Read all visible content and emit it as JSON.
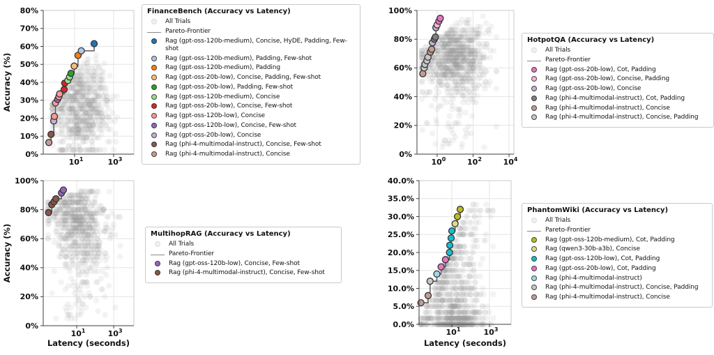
{
  "page": {
    "background": "#ffffff",
    "accuracy_axis_label": "Accuracy (%)",
    "latency_axis_label": "Latency (seconds)"
  },
  "chart_data": [
    {
      "id": "financebench",
      "type": "scatter",
      "title": "FinanceBench (Accuracy vs Latency)",
      "xlabel": null,
      "ylabel": "Accuracy (%)",
      "x_scale": "log",
      "x_tick_exponents": [
        1,
        3
      ],
      "x_log_range": [
        -0.61,
        4.04
      ],
      "y_range": [
        0,
        80
      ],
      "y_tick_step": 10,
      "y_tick_decimals": 0,
      "legend": {
        "title": "FinanceBench (Accuracy vs Latency)",
        "items": [
          {
            "label": "All Trials",
            "marker": "dot",
            "color": "#f0f0f0",
            "light": true
          },
          {
            "label": "Pareto-Frontier",
            "marker": "line",
            "color": "#888888"
          },
          {
            "label": "Rag (gpt-oss-120b-medium), Concise, HyDE, Padding, Few-shot",
            "marker": "dot",
            "color": "#1f77b4"
          },
          {
            "label": "Rag (gpt-oss-120b-medium), Padding, Few-shot",
            "marker": "dot",
            "color": "#aec7e8"
          },
          {
            "label": "Rag (gpt-oss-120b-medium), Padding",
            "marker": "dot",
            "color": "#ff7f0e"
          },
          {
            "label": "Rag (gpt-oss-20b-low), Concise, Padding, Few-shot",
            "marker": "dot",
            "color": "#ffbb78"
          },
          {
            "label": "Rag (gpt-oss-20b-low), Padding, Few-shot",
            "marker": "dot",
            "color": "#2ca02c"
          },
          {
            "label": "Rag (gpt-oss-120b-medium), Concise",
            "marker": "dot",
            "color": "#98df8a"
          },
          {
            "label": "Rag (gpt-oss-20b-low), Concise, Few-shot",
            "marker": "dot",
            "color": "#d62728"
          },
          {
            "label": "Rag (gpt-oss-120b-low), Concise",
            "marker": "dot",
            "color": "#ff9896"
          },
          {
            "label": "Rag (gpt-oss-120b-low), Concise, Few-shot",
            "marker": "dot",
            "color": "#9467bd"
          },
          {
            "label": "Rag (gpt-oss-20b-low), Concise",
            "marker": "dot",
            "color": "#c5b0d5"
          },
          {
            "label": "Rag (phi-4-multimodal-instruct), Concise, Few-shot",
            "marker": "dot",
            "color": "#8c564b"
          },
          {
            "label": "Rag (phi-4-multimodal-instruct), Concise",
            "marker": "dot",
            "color": "#c49c94"
          }
        ]
      },
      "pareto_frontier": {
        "line_color": "#5a5a5a",
        "points": [
          {
            "latency_s": 0.48,
            "accuracy_pct": 6.5,
            "series": "Rag (phi-4-multimodal-instruct), Concise"
          },
          {
            "latency_s": 0.62,
            "accuracy_pct": 11,
            "series": "Rag (phi-4-multimodal-instruct), Concise, Few-shot"
          },
          {
            "latency_s": 0.85,
            "accuracy_pct": 18.5,
            "series": "Rag (gpt-oss-20b-low), Concise"
          },
          {
            "latency_s": 0.92,
            "accuracy_pct": 21,
            "series": "Rag (gpt-oss-120b-low), Concise"
          },
          {
            "latency_s": 1.05,
            "accuracy_pct": 28.5,
            "series": "Rag (gpt-oss-120b-low), Concise"
          },
          {
            "latency_s": 1.35,
            "accuracy_pct": 30.5,
            "series": "Rag (gpt-oss-120b-low), Concise, Few-shot"
          },
          {
            "latency_s": 1.55,
            "accuracy_pct": 32,
            "series": "Rag (gpt-oss-120b-low), Concise"
          },
          {
            "latency_s": 1.7,
            "accuracy_pct": 33.5,
            "series": "Rag (gpt-oss-120b-low), Concise"
          },
          {
            "latency_s": 2.9,
            "accuracy_pct": 36,
            "series": "Rag (gpt-oss-20b-low), Concise, Few-shot"
          },
          {
            "latency_s": 3.1,
            "accuracy_pct": 39.5,
            "series": "Rag (gpt-oss-20b-low), Concise, Few-shot"
          },
          {
            "latency_s": 4.5,
            "accuracy_pct": 41,
            "series": "Rag (gpt-oss-120b-medium), Concise"
          },
          {
            "latency_s": 5.5,
            "accuracy_pct": 43,
            "series": "Rag (gpt-oss-120b-medium), Concise"
          },
          {
            "latency_s": 6.5,
            "accuracy_pct": 45,
            "series": "Rag (gpt-oss-20b-low), Padding, Few-shot"
          },
          {
            "latency_s": 9.5,
            "accuracy_pct": 49,
            "series": "Rag (gpt-oss-20b-low), Concise, Padding, Few-shot"
          },
          {
            "latency_s": 15,
            "accuracy_pct": 55,
            "series": "Rag (gpt-oss-120b-medium), Padding"
          },
          {
            "latency_s": 22,
            "accuracy_pct": 57.5,
            "series": "Rag (gpt-oss-120b-medium), Padding, Few-shot"
          },
          {
            "latency_s": 100,
            "accuracy_pct": 61.5,
            "series": "Rag (gpt-oss-120b-medium), Concise, HyDE, Padding, Few-shot"
          }
        ]
      },
      "all_trials_cloud": {
        "count": 700,
        "seed": 11,
        "dot_color": "#9c9c9c",
        "dot_opacity": 0.12,
        "x_log": {
          "mean": 1.35,
          "sd": 0.72,
          "min": -0.15,
          "max": 3.3
        },
        "y": {
          "dist": "normal",
          "mean": 26,
          "sd": 13,
          "mean_slope": 0,
          "min": 2.5,
          "max": 56,
          "step": 2.3
        },
        "tail": {
          "frac": 0,
          "min": 0,
          "max": 0
        },
        "cap": {
          "base": 30,
          "slope": 14,
          "pull": 12
        }
      }
    },
    {
      "id": "hotpotqa",
      "type": "scatter",
      "title": "HotpotQA (Accuracy vs Latency)",
      "xlabel": null,
      "ylabel": null,
      "x_scale": "log",
      "x_tick_exponents": [
        0,
        2,
        4
      ],
      "x_log_range": [
        -1.12,
        4.27
      ],
      "y_range": [
        0,
        100
      ],
      "y_tick_step": 20,
      "y_tick_decimals": 0,
      "legend": {
        "title": "HotpotQA (Accuracy vs Latency)",
        "items": [
          {
            "label": "All Trials",
            "marker": "dot",
            "color": "#f0f0f0",
            "light": true
          },
          {
            "label": "Pareto-Frontier",
            "marker": "line",
            "color": "#888888"
          },
          {
            "label": "Rag (gpt-oss-20b-low), Cot, Padding",
            "marker": "dot",
            "color": "#e377c2"
          },
          {
            "label": "Rag (gpt-oss-20b-low), Concise, Padding",
            "marker": "dot",
            "color": "#f7b6d2"
          },
          {
            "label": "Rag (gpt-oss-20b-low), Concise",
            "marker": "dot",
            "color": "#c5b0d5"
          },
          {
            "label": "Rag (phi-4-multimodal-instruct), Cot, Padding",
            "marker": "dot",
            "color": "#7f7f7f"
          },
          {
            "label": "Rag (phi-4-multimodal-instruct), Concise",
            "marker": "dot",
            "color": "#c49c94"
          },
          {
            "label": "Rag (phi-4-multimodal-instruct), Concise, Padding",
            "marker": "dot",
            "color": "#c7c7c7"
          }
        ]
      },
      "pareto_frontier": {
        "line_color": "#5a5a5a",
        "points": [
          {
            "latency_s": 0.16,
            "accuracy_pct": 56,
            "series": "Rag (phi-4-multimodal-instruct), Concise"
          },
          {
            "latency_s": 0.19,
            "accuracy_pct": 60,
            "series": "Rag (phi-4-multimodal-instruct), Concise, Padding"
          },
          {
            "latency_s": 0.21,
            "accuracy_pct": 62.5,
            "series": "Rag (phi-4-multimodal-instruct), Concise, Padding"
          },
          {
            "latency_s": 0.27,
            "accuracy_pct": 65,
            "series": "Rag (phi-4-multimodal-instruct), Concise, Padding"
          },
          {
            "latency_s": 0.31,
            "accuracy_pct": 67.5,
            "series": "Rag (phi-4-multimodal-instruct), Concise, Padding"
          },
          {
            "latency_s": 0.42,
            "accuracy_pct": 71,
            "series": "Rag (phi-4-multimodal-instruct), Concise"
          },
          {
            "latency_s": 0.5,
            "accuracy_pct": 73,
            "series": "Rag (phi-4-multimodal-instruct), Concise"
          },
          {
            "latency_s": 0.55,
            "accuracy_pct": 77.5,
            "series": "Rag (gpt-oss-20b-low), Concise"
          },
          {
            "latency_s": 0.7,
            "accuracy_pct": 80,
            "series": "Rag (phi-4-multimodal-instruct), Cot, Padding"
          },
          {
            "latency_s": 0.8,
            "accuracy_pct": 81.5,
            "series": "Rag (phi-4-multimodal-instruct), Cot, Padding"
          },
          {
            "latency_s": 0.85,
            "accuracy_pct": 88,
            "series": "Rag (gpt-oss-20b-low), Concise"
          },
          {
            "latency_s": 1.0,
            "accuracy_pct": 90,
            "series": "Rag (gpt-oss-20b-low), Concise, Padding"
          },
          {
            "latency_s": 1.25,
            "accuracy_pct": 92.5,
            "series": "Rag (gpt-oss-20b-low), Cot, Padding"
          },
          {
            "latency_s": 1.5,
            "accuracy_pct": 94.5,
            "series": "Rag (gpt-oss-20b-low), Cot, Padding"
          }
        ]
      },
      "all_trials_cloud": {
        "count": 900,
        "seed": 22,
        "dot_color": "#9c9c9c",
        "dot_opacity": 0.12,
        "x_log": {
          "mean": 1.0,
          "sd": 0.9,
          "min": -0.85,
          "max": 3.3
        },
        "y": {
          "dist": "normal",
          "mean": 67,
          "sd": 12,
          "mean_slope": 0,
          "min": 2,
          "max": 95,
          "step": 2.4
        },
        "tail": {
          "frac": 0.05,
          "min": 3,
          "max": 48
        },
        "cap": {
          "base": 82,
          "slope": 10,
          "pull": 15
        }
      }
    },
    {
      "id": "multihoprag",
      "type": "scatter",
      "title": "MultihopRAG (Accuracy vs Latency)",
      "xlabel": "Latency (seconds)",
      "ylabel": "Accuracy (%)",
      "x_scale": "log",
      "x_tick_exponents": [
        1,
        3
      ],
      "x_log_range": [
        -0.81,
        4.09
      ],
      "y_range": [
        0,
        100
      ],
      "y_tick_step": 20,
      "y_tick_decimals": 0,
      "legend": {
        "title": "MultihopRAG (Accuracy vs Latency)",
        "items": [
          {
            "label": "All Trials",
            "marker": "dot",
            "color": "#f0f0f0",
            "light": true
          },
          {
            "label": "Pareto-Frontier",
            "marker": "line",
            "color": "#888888"
          },
          {
            "label": "Rag (gpt-oss-120b-low), Concise, Few-shot",
            "marker": "dot",
            "color": "#9467bd"
          },
          {
            "label": "Rag (phi-4-multimodal-instruct), Concise, Few-shot",
            "marker": "dot",
            "color": "#8c564b"
          }
        ]
      },
      "pareto_frontier": {
        "line_color": "#5a5a5a",
        "points": [
          {
            "latency_s": 0.3,
            "accuracy_pct": 78,
            "series": "Rag (phi-4-multimodal-instruct), Concise, Few-shot"
          },
          {
            "latency_s": 0.45,
            "accuracy_pct": 83.5,
            "series": "Rag (phi-4-multimodal-instruct), Concise, Few-shot"
          },
          {
            "latency_s": 0.6,
            "accuracy_pct": 85.5,
            "series": "Rag (phi-4-multimodal-instruct), Concise, Few-shot"
          },
          {
            "latency_s": 0.75,
            "accuracy_pct": 87.5,
            "series": "Rag (phi-4-multimodal-instruct), Concise, Few-shot"
          },
          {
            "latency_s": 1.5,
            "accuracy_pct": 91.5,
            "series": "Rag (gpt-oss-120b-low), Concise, Few-shot"
          },
          {
            "latency_s": 1.9,
            "accuracy_pct": 93.5,
            "series": "Rag (gpt-oss-120b-low), Concise, Few-shot"
          }
        ]
      },
      "all_trials_cloud": {
        "count": 750,
        "seed": 33,
        "dot_color": "#9c9c9c",
        "dot_opacity": 0.12,
        "x_log": {
          "mean": 1.05,
          "sd": 0.8,
          "min": -0.55,
          "max": 3.35
        },
        "y": {
          "dist": "normal",
          "mean": 78,
          "sd": 14,
          "mean_slope": -6,
          "min": 2,
          "max": 92,
          "step": 2.5
        },
        "tail": {
          "frac": 0.12,
          "min": 3,
          "max": 55
        },
        "cap": {
          "base": 88,
          "slope": 4,
          "pull": 10
        }
      }
    },
    {
      "id": "phantomwiki",
      "type": "scatter",
      "title": "PhantomWiki (Accuracy vs Latency)",
      "xlabel": "Latency (seconds)",
      "ylabel": null,
      "x_scale": "log",
      "x_tick_exponents": [
        1,
        3
      ],
      "x_log_range": [
        -0.74,
        4.15
      ],
      "y_range": [
        0,
        40
      ],
      "y_tick_step": 5,
      "y_tick_decimals": 1,
      "legend": {
        "title": "PhantomWiki (Accuracy vs Latency)",
        "items": [
          {
            "label": "All Trials",
            "marker": "dot",
            "color": "#f0f0f0",
            "light": true
          },
          {
            "label": "Pareto-Frontier",
            "marker": "line",
            "color": "#888888"
          },
          {
            "label": "Rag (gpt-oss-120b-medium), Cot, Padding",
            "marker": "dot",
            "color": "#bcbd22"
          },
          {
            "label": "Rag (qwen3-30b-a3b), Concise",
            "marker": "dot",
            "color": "#dbdb8d"
          },
          {
            "label": "Rag (gpt-oss-120b-low), Cot, Padding",
            "marker": "dot",
            "color": "#17becf"
          },
          {
            "label": "Rag (gpt-oss-20b-low), Cot, Padding",
            "marker": "dot",
            "color": "#e377c2"
          },
          {
            "label": "Rag (phi-4-multimodal-instruct)",
            "marker": "dot",
            "color": "#9edae5"
          },
          {
            "label": "Rag (phi-4-multimodal-instruct), Concise, Padding",
            "marker": "dot",
            "color": "#c7c7c7"
          },
          {
            "label": "Rag (phi-4-multimodal-instruct), Concise",
            "marker": "dot",
            "color": "#c49c94"
          }
        ]
      },
      "pareto_frontier": {
        "line_color": "#5a5a5a",
        "points": [
          {
            "latency_s": 0.23,
            "accuracy_pct": 6,
            "series": "Rag (phi-4-multimodal-instruct), Concise"
          },
          {
            "latency_s": 0.55,
            "accuracy_pct": 8,
            "series": "Rag (phi-4-multimodal-instruct), Concise"
          },
          {
            "latency_s": 0.7,
            "accuracy_pct": 12,
            "series": "Rag (phi-4-multimodal-instruct), Concise, Padding"
          },
          {
            "latency_s": 1.6,
            "accuracy_pct": 14,
            "series": "Rag (phi-4-multimodal-instruct)"
          },
          {
            "latency_s": 2.7,
            "accuracy_pct": 16,
            "series": "Rag (gpt-oss-20b-low), Cot, Padding"
          },
          {
            "latency_s": 4.6,
            "accuracy_pct": 18,
            "series": "Rag (gpt-oss-20b-low), Cot, Padding"
          },
          {
            "latency_s": 7.5,
            "accuracy_pct": 20,
            "series": "Rag (gpt-oss-120b-low), Cot, Padding"
          },
          {
            "latency_s": 7.8,
            "accuracy_pct": 22,
            "series": "Rag (gpt-oss-120b-low), Cot, Padding"
          },
          {
            "latency_s": 9.2,
            "accuracy_pct": 24,
            "series": "Rag (gpt-oss-120b-low), Cot, Padding"
          },
          {
            "latency_s": 10,
            "accuracy_pct": 26,
            "series": "Rag (gpt-oss-120b-low), Cot, Padding"
          },
          {
            "latency_s": 15,
            "accuracy_pct": 28,
            "series": "Rag (qwen3-30b-a3b), Concise"
          },
          {
            "latency_s": 20,
            "accuracy_pct": 30,
            "series": "Rag (gpt-oss-120b-medium), Cot, Padding"
          },
          {
            "latency_s": 28,
            "accuracy_pct": 32,
            "series": "Rag (gpt-oss-120b-medium), Cot, Padding"
          }
        ]
      },
      "all_trials_cloud": {
        "count": 850,
        "seed": 44,
        "dot_color": "#9c9c9c",
        "dot_opacity": 0.12,
        "x_log": {
          "mean": 1.15,
          "sd": 0.78,
          "min": -0.65,
          "max": 3.2
        },
        "y": {
          "dist": "power",
          "base": 33,
          "power": 2.4,
          "mean_slope": 0,
          "min": 0,
          "max": 33,
          "step": 1.667
        },
        "tail": {
          "frac": 0,
          "min": 0,
          "max": 0
        },
        "cap": {
          "base": 10,
          "slope": 12,
          "pull": 6
        }
      }
    }
  ]
}
